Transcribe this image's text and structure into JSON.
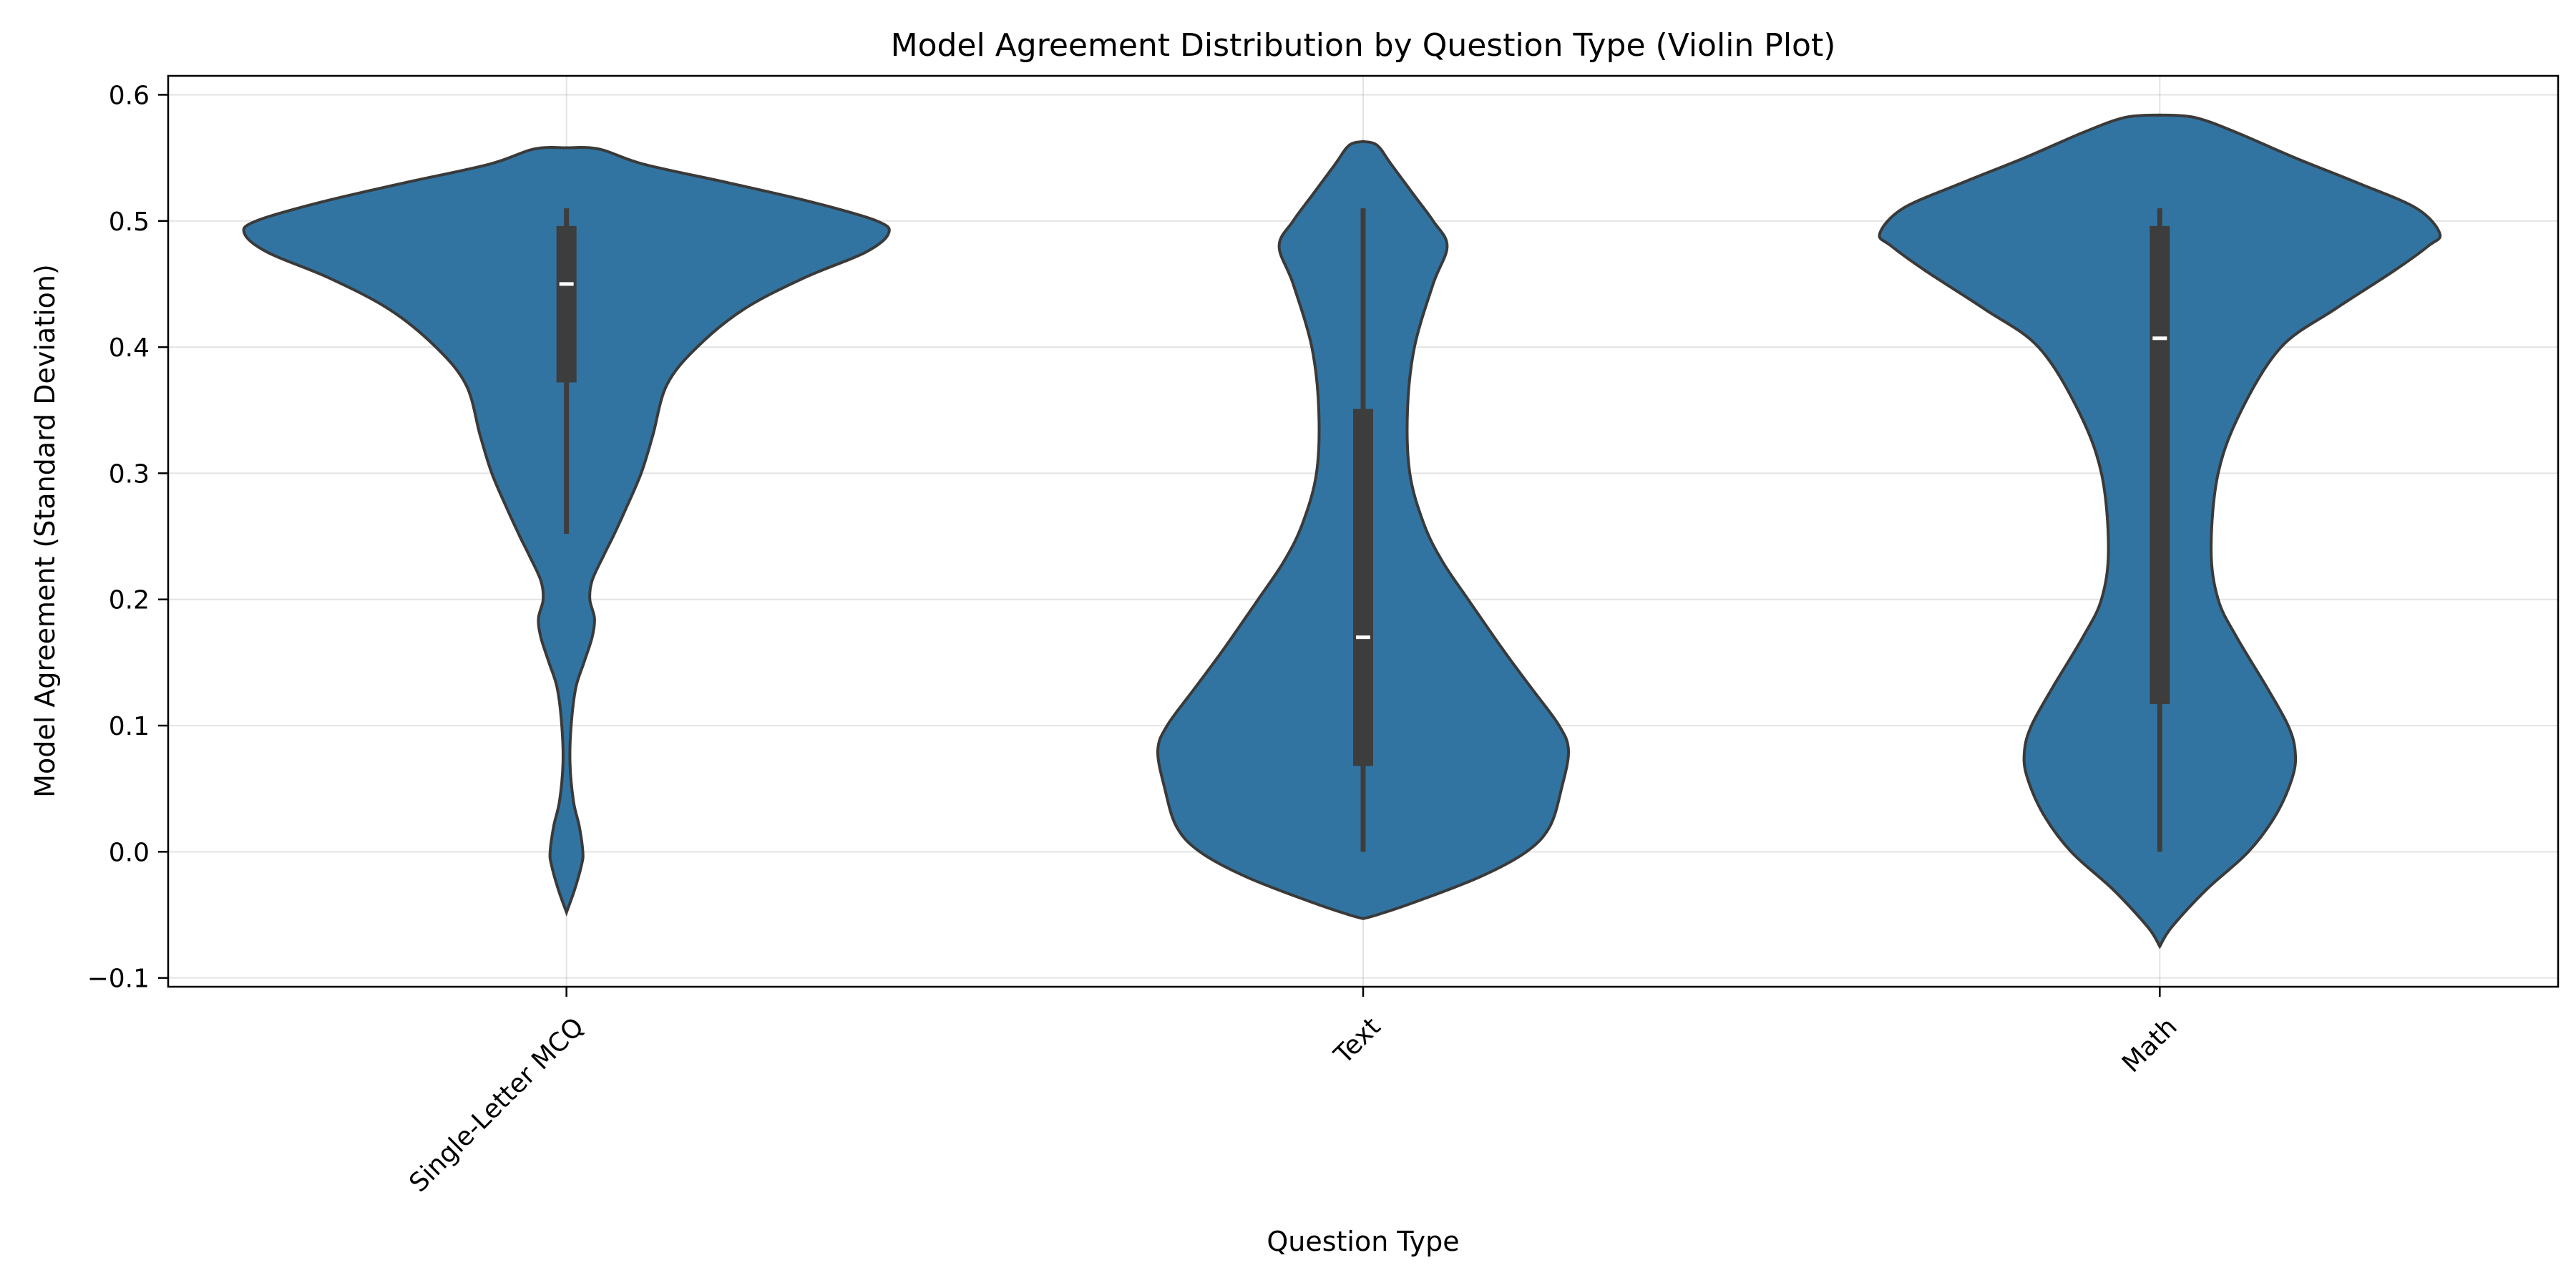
{
  "chart_data": {
    "type": "violin",
    "title": "Model Agreement Distribution by Question Type (Violin Plot)",
    "xlabel": "Question Type",
    "ylabel": "Model Agreement (Standard Deviation)",
    "ylim": [
      -0.107,
      0.615
    ],
    "yticks": [
      -0.1,
      0.0,
      0.1,
      0.2,
      0.3,
      0.4,
      0.5,
      0.6
    ],
    "ytick_labels": [
      "−0.1",
      "0.0",
      "0.1",
      "0.2",
      "0.3",
      "0.4",
      "0.5",
      "0.6"
    ],
    "categories": [
      "Single-Letter MCQ",
      "Text",
      "Math"
    ],
    "grid": true,
    "colors": {
      "violin_fill": "#3274a1",
      "violin_edge": "#3a3a3a",
      "box": "#3d3d3d",
      "median": "#ffffff"
    },
    "violins": [
      {
        "category": "Single-Letter MCQ",
        "density_profile": [
          [
            -0.048,
            0.0
          ],
          [
            -0.03,
            0.035
          ],
          [
            -0.01,
            0.065
          ],
          [
            0.0,
            0.07
          ],
          [
            0.02,
            0.055
          ],
          [
            0.04,
            0.03
          ],
          [
            0.07,
            0.015
          ],
          [
            0.1,
            0.02
          ],
          [
            0.13,
            0.04
          ],
          [
            0.15,
            0.075
          ],
          [
            0.17,
            0.11
          ],
          [
            0.185,
            0.12
          ],
          [
            0.2,
            0.1
          ],
          [
            0.215,
            0.11
          ],
          [
            0.235,
            0.16
          ],
          [
            0.25,
            0.2
          ],
          [
            0.27,
            0.25
          ],
          [
            0.3,
            0.32
          ],
          [
            0.33,
            0.37
          ],
          [
            0.37,
            0.43
          ],
          [
            0.4,
            0.56
          ],
          [
            0.43,
            0.76
          ],
          [
            0.455,
            1.02
          ],
          [
            0.475,
            1.28
          ],
          [
            0.49,
            1.38
          ],
          [
            0.5,
            1.33
          ],
          [
            0.515,
            1.05
          ],
          [
            0.53,
            0.7
          ],
          [
            0.545,
            0.33
          ],
          [
            0.557,
            0.14
          ],
          [
            0.558,
            0.0
          ]
        ],
        "whisker": [
          0.252,
          0.51
        ],
        "q1": 0.372,
        "q3": 0.496,
        "median": 0.45
      },
      {
        "category": "Text",
        "density_profile": [
          [
            -0.053,
            0.0
          ],
          [
            -0.05,
            0.06
          ],
          [
            -0.04,
            0.22
          ],
          [
            -0.02,
            0.5
          ],
          [
            0.0,
            0.7
          ],
          [
            0.02,
            0.8
          ],
          [
            0.05,
            0.85
          ],
          [
            0.08,
            0.88
          ],
          [
            0.1,
            0.84
          ],
          [
            0.13,
            0.72
          ],
          [
            0.16,
            0.6
          ],
          [
            0.2,
            0.45
          ],
          [
            0.23,
            0.34
          ],
          [
            0.26,
            0.26
          ],
          [
            0.3,
            0.2
          ],
          [
            0.35,
            0.19
          ],
          [
            0.4,
            0.22
          ],
          [
            0.45,
            0.3
          ],
          [
            0.48,
            0.36
          ],
          [
            0.5,
            0.3
          ],
          [
            0.52,
            0.22
          ],
          [
            0.545,
            0.12
          ],
          [
            0.56,
            0.06
          ],
          [
            0.563,
            0.0
          ]
        ],
        "whisker": [
          0.0,
          0.51
        ],
        "q1": 0.068,
        "q3": 0.351,
        "median": 0.17
      },
      {
        "category": "Math",
        "density_profile": [
          [
            -0.075,
            0.0
          ],
          [
            -0.06,
            0.05
          ],
          [
            -0.03,
            0.2
          ],
          [
            0.0,
            0.38
          ],
          [
            0.03,
            0.5
          ],
          [
            0.06,
            0.57
          ],
          [
            0.08,
            0.58
          ],
          [
            0.1,
            0.55
          ],
          [
            0.13,
            0.46
          ],
          [
            0.17,
            0.33
          ],
          [
            0.2,
            0.25
          ],
          [
            0.24,
            0.22
          ],
          [
            0.3,
            0.25
          ],
          [
            0.35,
            0.35
          ],
          [
            0.4,
            0.52
          ],
          [
            0.43,
            0.75
          ],
          [
            0.46,
            1.0
          ],
          [
            0.48,
            1.15
          ],
          [
            0.49,
            1.2
          ],
          [
            0.51,
            1.1
          ],
          [
            0.53,
            0.85
          ],
          [
            0.55,
            0.58
          ],
          [
            0.57,
            0.33
          ],
          [
            0.582,
            0.15
          ],
          [
            0.584,
            0.0
          ]
        ],
        "whisker": [
          0.0,
          0.51
        ],
        "q1": 0.117,
        "q3": 0.496,
        "median": 0.407
      }
    ]
  }
}
